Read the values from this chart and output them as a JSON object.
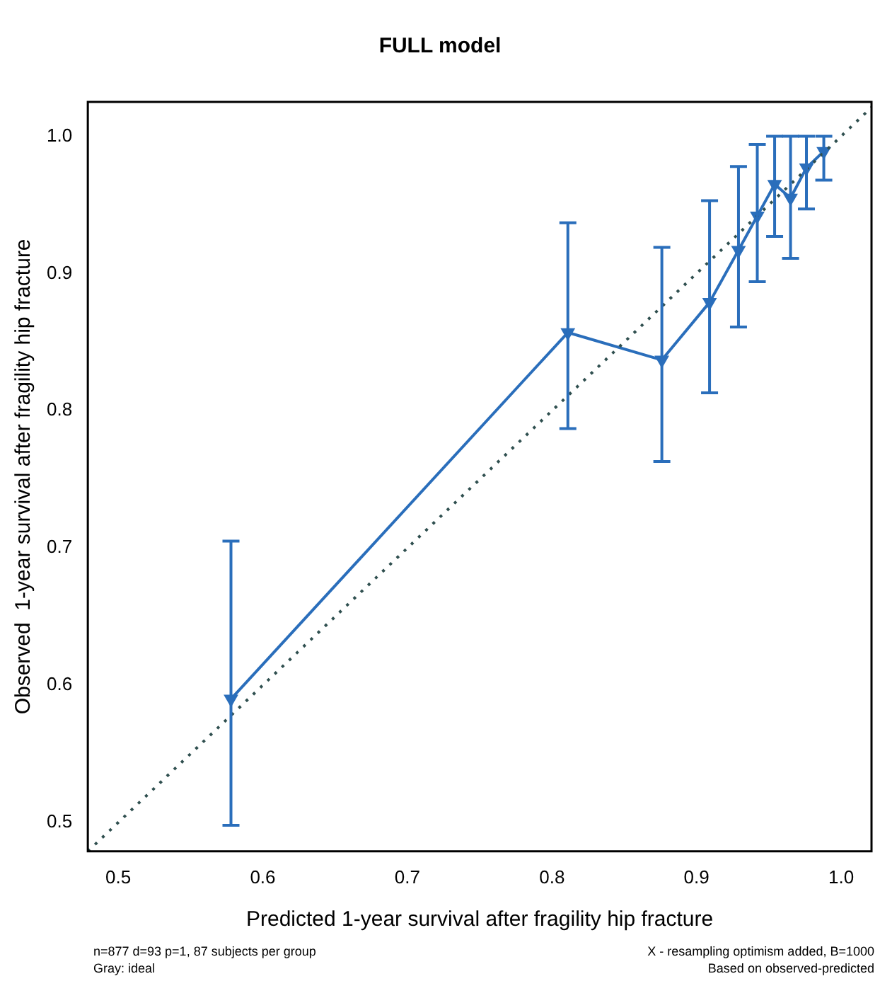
{
  "chart_data": {
    "type": "scatter",
    "title": "FULL model",
    "xlabel": "Predicted 1-year survival after fragility hip fracture",
    "ylabel": "Observed  1-year survival after fragility hip fracture",
    "xlim": [
      0.479,
      1.021
    ],
    "ylim": [
      0.479,
      1.025
    ],
    "xticks": [
      0.5,
      0.6,
      0.7,
      0.8,
      0.9,
      {
        "value": 1,
        "label": "1.0"
      }
    ],
    "yticks": [
      0.5,
      0.6,
      0.7,
      0.8,
      0.9,
      {
        "value": 1,
        "label": "1.0"
      }
    ],
    "grid": false,
    "legend": false,
    "series": [
      {
        "type": "line",
        "color": "#2f4f4f",
        "line_style": "dotted",
        "marker": "none",
        "x": [
          0.479,
          1.021
        ],
        "values": [
          0.479,
          1.021
        ]
      },
      {
        "type": "line",
        "color": "#2a6ebb",
        "line_style": "solid",
        "marker": "triangle",
        "x": [
          0.578,
          0.811,
          0.876,
          0.909,
          0.929,
          0.942,
          0.954,
          0.965,
          0.976,
          0.988
        ],
        "values": [
          0.59,
          0.857,
          0.837,
          0.879,
          0.917,
          0.942,
          0.965,
          0.955,
          0.977,
          0.989
        ],
        "errors": [
          [
            0.498,
            0.705
          ],
          [
            0.787,
            0.937
          ],
          [
            0.763,
            0.919
          ],
          [
            0.813,
            0.953
          ],
          [
            0.861,
            0.978
          ],
          [
            0.894,
            0.994
          ],
          [
            0.927,
            1.0
          ],
          [
            0.911,
            1.0
          ],
          [
            0.947,
            1.0
          ],
          [
            0.968,
            1.0
          ]
        ]
      }
    ],
    "annotations": [
      "n=877 d=93 p=1, 87 subjects per group",
      "Gray: ideal",
      "X - resampling optimism added, B=1000",
      "Based on observed-predicted"
    ]
  }
}
